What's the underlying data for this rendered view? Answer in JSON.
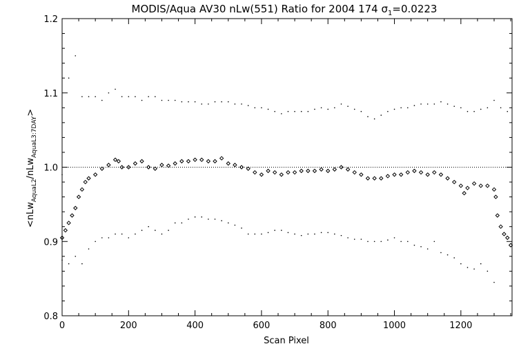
{
  "chart_data": {
    "type": "scatter",
    "title": {
      "main": "MODIS/Aqua AV30 nLw(551) Ratio for 2004 174 ",
      "sigma_symbol": "σ",
      "sigma_subscript": "1",
      "sigma_value": "=0.0223"
    },
    "xlabel": "Scan Pixel",
    "ylabel": {
      "prefix": "<nLw",
      "sub1": "AquaL2",
      "mid": "/nLw",
      "sub2": "AquaL3:7DAY",
      "suffix": ">"
    },
    "xlim": [
      0,
      1354
    ],
    "ylim": [
      0.8,
      1.2
    ],
    "xticks": [
      0,
      200,
      400,
      600,
      800,
      1000,
      1200
    ],
    "xtick_labels": [
      "0",
      "200",
      "400",
      "600",
      "800",
      "1000",
      "1200"
    ],
    "yticks": [
      0.8,
      0.9,
      1.0,
      1.1,
      1.2
    ],
    "ytick_labels": [
      "0.8",
      "0.9",
      "1.0",
      "1.1",
      "1.2"
    ],
    "reference_line": 1.0,
    "grid": false,
    "marker_color": "#000000",
    "series": [
      {
        "marker": "diamond",
        "points": [
          [
            0,
            0.905
          ],
          [
            10,
            0.915
          ],
          [
            20,
            0.925
          ],
          [
            30,
            0.935
          ],
          [
            40,
            0.945
          ],
          [
            50,
            0.96
          ],
          [
            60,
            0.97
          ],
          [
            70,
            0.98
          ],
          [
            80,
            0.985
          ],
          [
            100,
            0.99
          ],
          [
            120,
            0.998
          ],
          [
            140,
            1.003
          ],
          [
            160,
            1.01
          ],
          [
            170,
            1.008
          ],
          [
            180,
            1.0
          ],
          [
            200,
            1.0
          ],
          [
            220,
            1.005
          ],
          [
            240,
            1.008
          ],
          [
            260,
            1.0
          ],
          [
            280,
            0.998
          ],
          [
            300,
            1.003
          ],
          [
            320,
            1.002
          ],
          [
            340,
            1.005
          ],
          [
            360,
            1.008
          ],
          [
            380,
            1.008
          ],
          [
            400,
            1.01
          ],
          [
            420,
            1.01
          ],
          [
            440,
            1.008
          ],
          [
            460,
            1.008
          ],
          [
            480,
            1.012
          ],
          [
            500,
            1.005
          ],
          [
            520,
            1.003
          ],
          [
            540,
            1.0
          ],
          [
            560,
            0.998
          ],
          [
            580,
            0.993
          ],
          [
            600,
            0.99
          ],
          [
            620,
            0.995
          ],
          [
            640,
            0.993
          ],
          [
            660,
            0.99
          ],
          [
            680,
            0.993
          ],
          [
            700,
            0.993
          ],
          [
            720,
            0.995
          ],
          [
            740,
            0.995
          ],
          [
            760,
            0.995
          ],
          [
            780,
            0.997
          ],
          [
            800,
            0.995
          ],
          [
            820,
            0.997
          ],
          [
            840,
            1.0
          ],
          [
            860,
            0.997
          ],
          [
            880,
            0.993
          ],
          [
            900,
            0.99
          ],
          [
            920,
            0.985
          ],
          [
            940,
            0.985
          ],
          [
            960,
            0.985
          ],
          [
            980,
            0.988
          ],
          [
            1000,
            0.99
          ],
          [
            1020,
            0.99
          ],
          [
            1040,
            0.993
          ],
          [
            1060,
            0.995
          ],
          [
            1080,
            0.993
          ],
          [
            1100,
            0.99
          ],
          [
            1120,
            0.993
          ],
          [
            1140,
            0.99
          ],
          [
            1160,
            0.985
          ],
          [
            1180,
            0.98
          ],
          [
            1200,
            0.975
          ],
          [
            1210,
            0.965
          ],
          [
            1220,
            0.972
          ],
          [
            1240,
            0.978
          ],
          [
            1260,
            0.975
          ],
          [
            1280,
            0.975
          ],
          [
            1300,
            0.97
          ],
          [
            1305,
            0.96
          ],
          [
            1310,
            0.935
          ],
          [
            1320,
            0.92
          ],
          [
            1330,
            0.91
          ],
          [
            1340,
            0.905
          ],
          [
            1350,
            0.895
          ]
        ]
      },
      {
        "marker": "dot",
        "points": [
          [
            0,
            0.99
          ],
          [
            20,
            1.12
          ],
          [
            40,
            1.15
          ],
          [
            60,
            1.095
          ],
          [
            80,
            1.095
          ],
          [
            100,
            1.095
          ],
          [
            120,
            1.09
          ],
          [
            140,
            1.1
          ],
          [
            160,
            1.105
          ],
          [
            180,
            1.095
          ],
          [
            200,
            1.095
          ],
          [
            220,
            1.095
          ],
          [
            240,
            1.09
          ],
          [
            260,
            1.095
          ],
          [
            280,
            1.095
          ],
          [
            300,
            1.09
          ],
          [
            320,
            1.09
          ],
          [
            340,
            1.09
          ],
          [
            360,
            1.088
          ],
          [
            380,
            1.088
          ],
          [
            400,
            1.088
          ],
          [
            420,
            1.085
          ],
          [
            440,
            1.085
          ],
          [
            460,
            1.088
          ],
          [
            480,
            1.088
          ],
          [
            500,
            1.088
          ],
          [
            520,
            1.085
          ],
          [
            540,
            1.085
          ],
          [
            560,
            1.083
          ],
          [
            580,
            1.08
          ],
          [
            600,
            1.08
          ],
          [
            620,
            1.078
          ],
          [
            640,
            1.075
          ],
          [
            660,
            1.072
          ],
          [
            680,
            1.075
          ],
          [
            700,
            1.075
          ],
          [
            720,
            1.075
          ],
          [
            740,
            1.075
          ],
          [
            760,
            1.078
          ],
          [
            780,
            1.08
          ],
          [
            800,
            1.078
          ],
          [
            820,
            1.08
          ],
          [
            840,
            1.085
          ],
          [
            860,
            1.082
          ],
          [
            880,
            1.078
          ],
          [
            900,
            1.075
          ],
          [
            920,
            1.068
          ],
          [
            940,
            1.065
          ],
          [
            960,
            1.07
          ],
          [
            980,
            1.075
          ],
          [
            1000,
            1.078
          ],
          [
            1020,
            1.08
          ],
          [
            1040,
            1.08
          ],
          [
            1060,
            1.083
          ],
          [
            1080,
            1.085
          ],
          [
            1100,
            1.085
          ],
          [
            1120,
            1.085
          ],
          [
            1140,
            1.088
          ],
          [
            1160,
            1.085
          ],
          [
            1180,
            1.082
          ],
          [
            1200,
            1.08
          ],
          [
            1220,
            1.075
          ],
          [
            1240,
            1.075
          ],
          [
            1260,
            1.078
          ],
          [
            1280,
            1.08
          ],
          [
            1300,
            1.09
          ],
          [
            1320,
            1.08
          ],
          [
            1340,
            1.075
          ]
        ]
      },
      {
        "marker": "dot",
        "points": [
          [
            0,
            0.875
          ],
          [
            20,
            0.87
          ],
          [
            40,
            0.88
          ],
          [
            60,
            0.87
          ],
          [
            80,
            0.89
          ],
          [
            100,
            0.9
          ],
          [
            120,
            0.905
          ],
          [
            140,
            0.905
          ],
          [
            160,
            0.91
          ],
          [
            180,
            0.91
          ],
          [
            200,
            0.905
          ],
          [
            220,
            0.91
          ],
          [
            240,
            0.915
          ],
          [
            260,
            0.92
          ],
          [
            280,
            0.915
          ],
          [
            300,
            0.91
          ],
          [
            320,
            0.915
          ],
          [
            340,
            0.925
          ],
          [
            360,
            0.925
          ],
          [
            380,
            0.93
          ],
          [
            400,
            0.933
          ],
          [
            420,
            0.933
          ],
          [
            440,
            0.93
          ],
          [
            460,
            0.93
          ],
          [
            480,
            0.928
          ],
          [
            500,
            0.925
          ],
          [
            520,
            0.922
          ],
          [
            540,
            0.918
          ],
          [
            560,
            0.91
          ],
          [
            580,
            0.91
          ],
          [
            600,
            0.91
          ],
          [
            620,
            0.912
          ],
          [
            640,
            0.915
          ],
          [
            660,
            0.915
          ],
          [
            680,
            0.912
          ],
          [
            700,
            0.91
          ],
          [
            720,
            0.908
          ],
          [
            740,
            0.91
          ],
          [
            760,
            0.91
          ],
          [
            780,
            0.912
          ],
          [
            800,
            0.912
          ],
          [
            820,
            0.91
          ],
          [
            840,
            0.908
          ],
          [
            860,
            0.905
          ],
          [
            880,
            0.903
          ],
          [
            900,
            0.903
          ],
          [
            920,
            0.9
          ],
          [
            940,
            0.9
          ],
          [
            960,
            0.9
          ],
          [
            980,
            0.902
          ],
          [
            1000,
            0.905
          ],
          [
            1020,
            0.9
          ],
          [
            1040,
            0.9
          ],
          [
            1060,
            0.895
          ],
          [
            1080,
            0.893
          ],
          [
            1100,
            0.89
          ],
          [
            1120,
            0.9
          ],
          [
            1140,
            0.885
          ],
          [
            1160,
            0.882
          ],
          [
            1180,
            0.878
          ],
          [
            1200,
            0.87
          ],
          [
            1220,
            0.865
          ],
          [
            1240,
            0.863
          ],
          [
            1260,
            0.87
          ],
          [
            1280,
            0.86
          ],
          [
            1300,
            0.845
          ]
        ]
      }
    ]
  }
}
